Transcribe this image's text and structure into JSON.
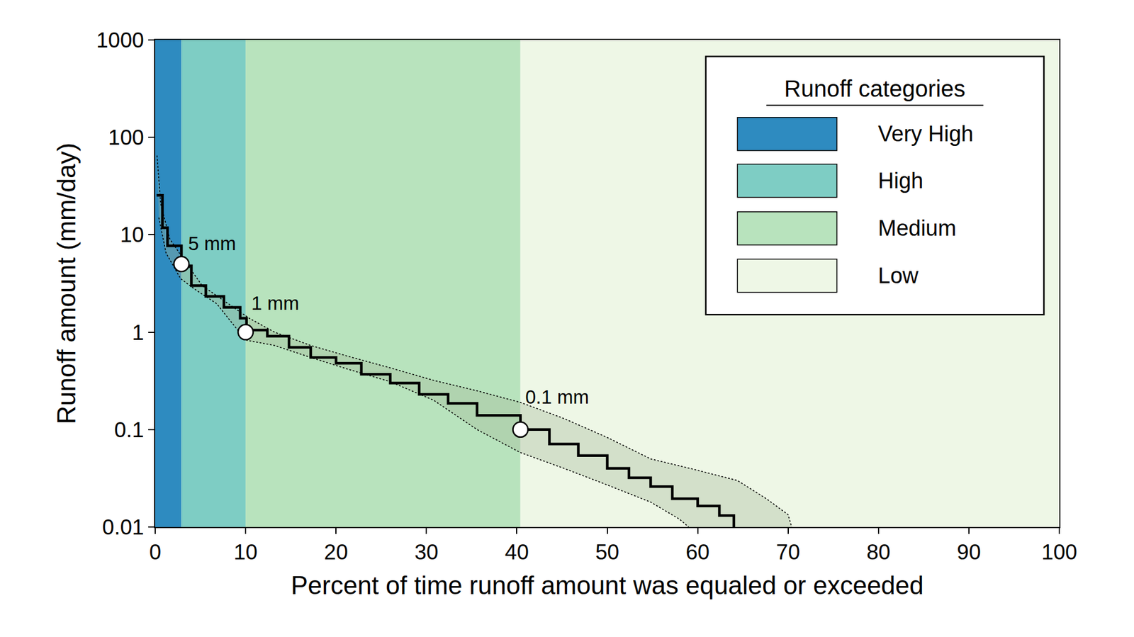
{
  "chart_data": {
    "type": "line",
    "xlabel": "Percent of time runoff amount was equaled or exceeded",
    "ylabel": "Runoff amount (mm/day)",
    "log": "y",
    "xlim": [
      0,
      100
    ],
    "xticks": [
      0,
      10,
      20,
      30,
      40,
      50,
      60,
      70,
      80,
      90,
      100
    ],
    "ylim": [
      0.01,
      1000
    ],
    "yticks": [
      0.01,
      0.1,
      1,
      10,
      100,
      1000
    ],
    "legend": "upper right",
    "legend_title": "Runoff categories",
    "bands": [
      {
        "name": "Very High",
        "color": "#2e8bc0",
        "x": [
          0,
          2.9
        ]
      },
      {
        "name": "High",
        "color": "#7ecdc4",
        "x": [
          2.9,
          10
        ]
      },
      {
        "name": "Medium",
        "color": "#b8e3bd",
        "x": [
          10,
          40.4
        ]
      },
      {
        "name": "Low",
        "color": "#eef7e6",
        "x": [
          40.4,
          100
        ]
      }
    ],
    "series": [
      {
        "color": "#000000",
        "line_style": "dotted",
        "x": [
          0.2,
          0.6,
          1.6,
          3.2,
          5.2,
          7.6,
          10.4,
          13.2,
          17.2,
          21.2,
          26,
          30.8,
          35.6,
          40.4,
          45.2,
          50,
          54.8,
          59.6,
          64.4,
          67.6,
          70,
          70.4
        ],
        "values": [
          65,
          21,
          9.1,
          5.5,
          3.0,
          2.1,
          1.39,
          1.0,
          0.73,
          0.57,
          0.43,
          0.32,
          0.25,
          0.19,
          0.13,
          0.083,
          0.05,
          0.039,
          0.03,
          0.0195,
          0.0134,
          0.01
        ]
      },
      {
        "color": "#000000",
        "line_style": "dotted",
        "x": [
          0.4,
          1.2,
          2.8,
          4.4,
          6.8,
          10,
          13.2,
          17.2,
          21.2,
          26,
          30.8,
          35.6,
          40.4,
          45.2,
          50,
          54.8,
          58,
          59
        ],
        "values": [
          15,
          6.5,
          3.55,
          2.75,
          1.96,
          0.83,
          0.73,
          0.55,
          0.42,
          0.31,
          0.2,
          0.1,
          0.058,
          0.04,
          0.027,
          0.018,
          0.012,
          0.01
        ]
      },
      {
        "color": "#000000",
        "line_style": "solid",
        "x": [
          0.16,
          0.8,
          1.36,
          2.9,
          4.0,
          5.6,
          7.6,
          9.4,
          10.1,
          12.4,
          14.8,
          17.2,
          20,
          22.8,
          26,
          29.2,
          32.4,
          35.6,
          40.4,
          43.6,
          46.8,
          50,
          52.4,
          54.8,
          57.2,
          60,
          62.4,
          64
        ],
        "values": [
          25.4,
          11.8,
          7.7,
          4.8,
          3.0,
          2.33,
          1.8,
          1.39,
          1.05,
          0.91,
          0.7,
          0.55,
          0.48,
          0.37,
          0.3,
          0.23,
          0.186,
          0.14,
          0.1,
          0.071,
          0.054,
          0.04,
          0.032,
          0.026,
          0.0195,
          0.0164,
          0.0131,
          0.01
        ]
      }
    ],
    "annotations": [
      {
        "x": 2.9,
        "y": 5,
        "text": "5 mm"
      },
      {
        "x": 10,
        "y": 1,
        "text": "1 mm"
      },
      {
        "x": 40.4,
        "y": 0.1,
        "text": "0.1 mm"
      }
    ]
  }
}
